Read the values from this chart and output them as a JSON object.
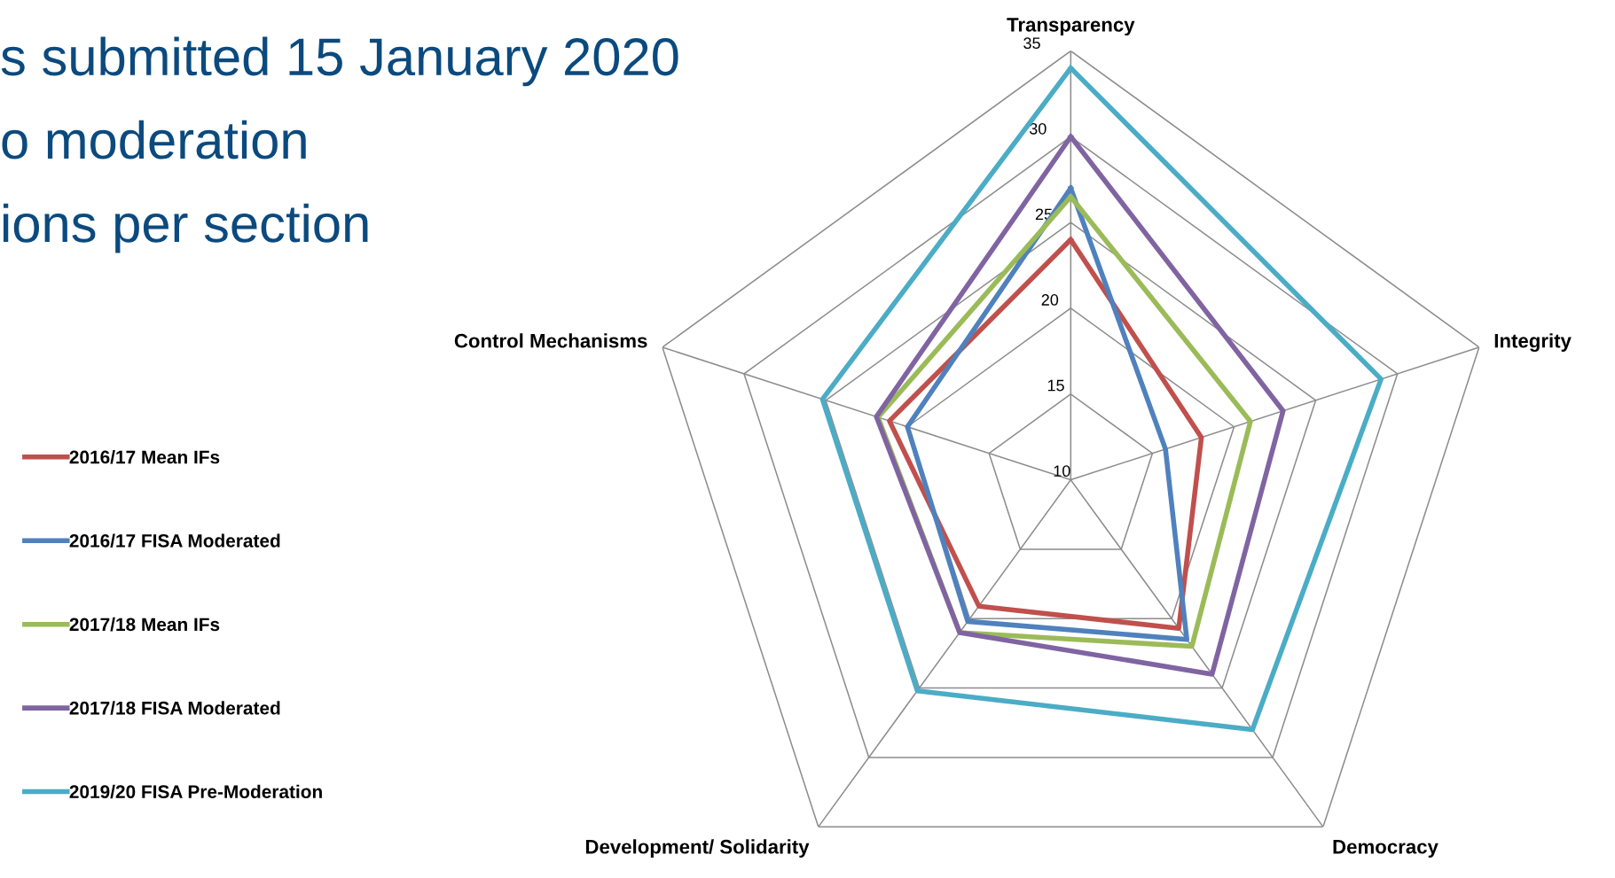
{
  "chart_data": {
    "type": "radar",
    "categories": [
      "Transparency",
      "Integrity",
      "Democracy",
      "Development/ Solidarity",
      "Control Mechanisms"
    ],
    "series": [
      {
        "name": "2016/17 Mean IFs",
        "color": "#c0504d",
        "values": [
          24,
          18,
          20.7,
          19.1,
          21.1
        ]
      },
      {
        "name": "2016/17 FISA Moderated",
        "color": "#4f81bd",
        "values": [
          27,
          15.8,
          21.5,
          20.2,
          20
        ]
      },
      {
        "name": "2017/18 Mean IFs",
        "color": "#9bbb59",
        "values": [
          26.5,
          21,
          22,
          21,
          21.8
        ]
      },
      {
        "name": "2017/18 FISA Moderated",
        "color": "#8064a2",
        "values": [
          30,
          23,
          24,
          21,
          21.9
        ]
      },
      {
        "name": "2019/20 FISA Pre-Moderation",
        "color": "#4bacc6",
        "values": [
          34,
          29,
          28,
          25.2,
          25.2
        ]
      }
    ],
    "ylim": [
      10,
      35
    ],
    "yticks": [
      10,
      15,
      20,
      25,
      30,
      35
    ],
    "grid": true,
    "legend": "left",
    "marker": "none",
    "line_style": "solid",
    "annotations": [
      "s submitted 15 January 2020",
      "o moderation",
      "ions per section"
    ]
  }
}
